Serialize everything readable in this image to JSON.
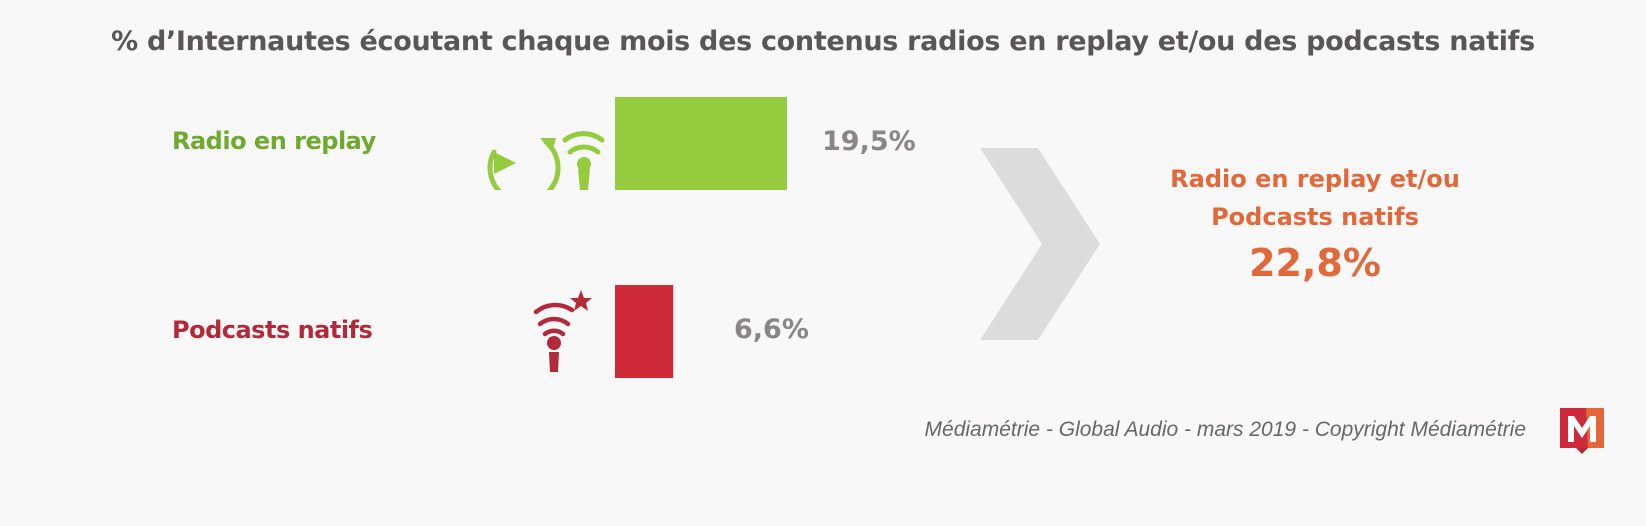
{
  "chart_data": {
    "type": "bar",
    "title": "% d’Internautes écoutant chaque mois des contenus radios en replay et/ou des podcasts natifs",
    "categories": [
      "Radio en replay",
      "Podcasts natifs"
    ],
    "values": [
      19.5,
      6.6
    ],
    "value_labels": [
      "19,5%",
      "6,6%"
    ],
    "colors": [
      "#95cc3f",
      "#cf2a3a"
    ],
    "label_colors": [
      "#6faa2e",
      "#b22a3a"
    ],
    "summary": {
      "label_line1": "Radio en replay et/ou",
      "label_line2": "Podcasts natifs",
      "value": "22,8%"
    },
    "xlabel": "",
    "ylabel": ""
  },
  "footer": "Médiamétrie - Global Audio - mars 2019 - Copyright Médiamétrie",
  "logo_text": "M"
}
